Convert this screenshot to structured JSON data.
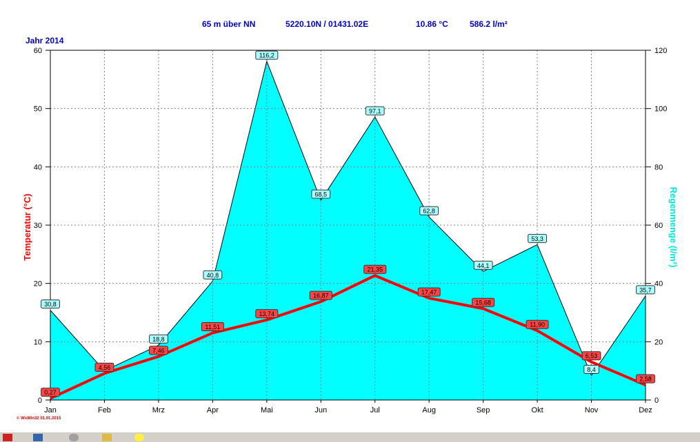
{
  "header": {
    "elevation": "65 m über NN",
    "coords": "5220.10N / 01431.02E",
    "avg_temp": "10.86 °C",
    "total_rain": "586.2 l/m²"
  },
  "year_label": "Jahr  2014",
  "footer": "© WsWin32  01.01.2015",
  "chart_data": {
    "type": "line",
    "categories": [
      "Jan",
      "Feb",
      "Mrz",
      "Apr",
      "Mai",
      "Jun",
      "Jul",
      "Aug",
      "Sep",
      "Okt",
      "Nov",
      "Dez"
    ],
    "series": [
      {
        "name": "Temperatur (°C)",
        "axis": "left",
        "color": "#ff0000",
        "values": [
          0.27,
          4.56,
          7.46,
          11.51,
          13.74,
          16.87,
          21.35,
          17.47,
          15.68,
          11.9,
          6.53,
          2.58
        ],
        "labels": [
          "0,27",
          "4,56",
          "7,46",
          "11,51",
          "13,74",
          "16,87",
          "21,35",
          "17,47",
          "15,68",
          "11,90",
          "6,53",
          "2,58"
        ]
      },
      {
        "name": "Regenmenge (l/m²)",
        "axis": "right",
        "color": "#00ffff",
        "render": "area",
        "values": [
          30.8,
          10.0,
          18.8,
          40.8,
          116.2,
          68.5,
          97.1,
          62.8,
          44.1,
          53.3,
          8.4,
          35.7
        ],
        "labels": [
          "30,8",
          "",
          "18,8",
          "40,8",
          "116,2",
          "68,5",
          "97,1",
          "62,8",
          "44,1",
          "53,3",
          "8,4",
          "35,7"
        ]
      }
    ],
    "ylabel": "Temperatur  (°C)",
    "y2label": "Regenmenge  (l/m²)",
    "ylim": [
      0,
      60
    ],
    "y2lim": [
      0,
      120
    ],
    "yticks": [
      0,
      10,
      20,
      30,
      40,
      50,
      60
    ],
    "y2ticks": [
      0,
      20,
      40,
      60,
      80,
      100,
      120
    ],
    "grid": true
  }
}
